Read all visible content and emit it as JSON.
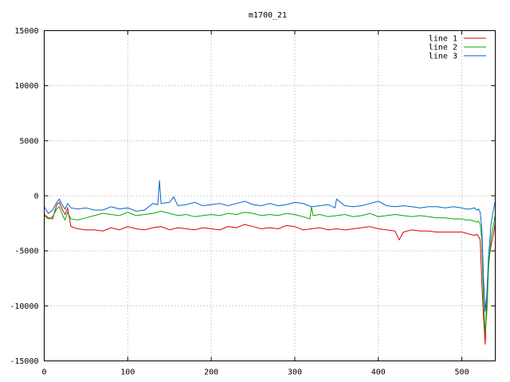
{
  "chart_data": {
    "type": "line",
    "title": "m1700_21",
    "xlabel": "",
    "ylabel": "",
    "xlim": [
      0,
      540
    ],
    "ylim": [
      -15000,
      15000
    ],
    "xticks": [
      0,
      100,
      200,
      300,
      400,
      500
    ],
    "yticks": [
      -15000,
      -10000,
      -5000,
      0,
      5000,
      10000,
      15000
    ],
    "grid": true,
    "legend_position": "top-right",
    "series": [
      {
        "name": "line 1",
        "color": "#dd0000",
        "x": [
          0,
          5,
          10,
          15,
          18,
          22,
          25,
          28,
          32,
          40,
          50,
          60,
          70,
          80,
          90,
          100,
          110,
          120,
          130,
          140,
          150,
          160,
          170,
          180,
          190,
          200,
          210,
          220,
          230,
          240,
          250,
          260,
          270,
          280,
          290,
          300,
          310,
          320,
          330,
          340,
          350,
          360,
          370,
          380,
          390,
          400,
          410,
          420,
          425,
          430,
          440,
          450,
          460,
          470,
          480,
          490,
          500,
          505,
          510,
          515,
          518,
          520,
          522,
          524,
          526,
          528,
          530,
          532,
          535,
          538,
          540
        ],
        "y": [
          -1700,
          -2000,
          -2100,
          -800,
          -600,
          -1300,
          -1700,
          -1100,
          -2800,
          -3000,
          -3100,
          -3100,
          -3200,
          -2900,
          -3100,
          -2800,
          -3000,
          -3100,
          -2900,
          -2800,
          -3100,
          -2900,
          -3000,
          -3100,
          -2900,
          -3000,
          -3100,
          -2800,
          -2900,
          -2600,
          -2800,
          -3000,
          -2900,
          -3000,
          -2700,
          -2800,
          -3100,
          -3000,
          -2900,
          -3100,
          -3000,
          -3100,
          -3000,
          -2900,
          -2800,
          -3000,
          -3100,
          -3200,
          -4000,
          -3300,
          -3100,
          -3200,
          -3200,
          -3300,
          -3300,
          -3300,
          -3300,
          -3400,
          -3500,
          -3600,
          -3500,
          -3700,
          -4000,
          -8000,
          -11000,
          -13500,
          -9000,
          -6000,
          -4500,
          -3400,
          -2500
        ]
      },
      {
        "name": "line 2",
        "color": "#00aa00",
        "x": [
          0,
          5,
          10,
          15,
          18,
          22,
          25,
          28,
          32,
          40,
          50,
          60,
          70,
          80,
          90,
          100,
          110,
          120,
          130,
          140,
          150,
          160,
          170,
          180,
          190,
          200,
          210,
          220,
          230,
          240,
          250,
          260,
          270,
          280,
          290,
          300,
          310,
          318,
          320,
          322,
          330,
          340,
          350,
          360,
          370,
          380,
          390,
          400,
          410,
          420,
          430,
          440,
          450,
          460,
          470,
          480,
          490,
          500,
          505,
          510,
          515,
          518,
          520,
          522,
          524,
          526,
          528,
          530,
          532,
          535,
          538,
          540
        ],
        "y": [
          -1800,
          -2100,
          -1900,
          -1200,
          -1000,
          -1800,
          -2200,
          -1500,
          -2100,
          -2200,
          -2000,
          -1800,
          -1600,
          -1700,
          -1800,
          -1500,
          -1800,
          -1700,
          -1600,
          -1400,
          -1600,
          -1800,
          -1700,
          -1900,
          -1800,
          -1700,
          -1800,
          -1600,
          -1700,
          -1500,
          -1600,
          -1800,
          -1700,
          -1800,
          -1600,
          -1700,
          -1900,
          -2100,
          -1000,
          -1800,
          -1700,
          -1900,
          -1800,
          -1700,
          -1900,
          -1800,
          -1600,
          -1900,
          -1800,
          -1700,
          -1800,
          -1900,
          -1800,
          -1900,
          -2000,
          -2000,
          -2100,
          -2100,
          -2200,
          -2200,
          -2300,
          -2400,
          -2300,
          -2600,
          -4000,
          -9500,
          -12500,
          -10500,
          -6500,
          -3800,
          -2600,
          -1700
        ]
      },
      {
        "name": "line 3",
        "color": "#0066cc",
        "x": [
          0,
          5,
          10,
          15,
          18,
          22,
          25,
          28,
          32,
          40,
          50,
          60,
          70,
          80,
          90,
          100,
          110,
          120,
          130,
          136,
          138,
          140,
          150,
          155,
          160,
          170,
          180,
          190,
          200,
          210,
          220,
          230,
          240,
          250,
          260,
          270,
          280,
          290,
          300,
          310,
          320,
          330,
          340,
          348,
          350,
          360,
          370,
          380,
          390,
          400,
          410,
          420,
          430,
          440,
          450,
          460,
          470,
          480,
          490,
          500,
          505,
          510,
          515,
          518,
          520,
          522,
          524,
          526,
          528,
          530,
          532,
          535,
          538,
          540
        ],
        "y": [
          -1000,
          -1600,
          -1300,
          -600,
          -300,
          -900,
          -1200,
          -700,
          -1100,
          -1200,
          -1100,
          -1300,
          -1300,
          -1000,
          -1200,
          -1100,
          -1400,
          -1300,
          -700,
          -800,
          1400,
          -700,
          -600,
          -100,
          -900,
          -800,
          -600,
          -900,
          -800,
          -700,
          -900,
          -700,
          -500,
          -800,
          -900,
          -700,
          -900,
          -800,
          -600,
          -700,
          -1000,
          -900,
          -800,
          -1100,
          -300,
          -900,
          -1000,
          -900,
          -700,
          -500,
          -900,
          -1000,
          -900,
          -1000,
          -1100,
          -1000,
          -1000,
          -1100,
          -1000,
          -1100,
          -1200,
          -1200,
          -1100,
          -1300,
          -1200,
          -1500,
          -3000,
          -7500,
          -10500,
          -9000,
          -5500,
          -2500,
          -1200,
          -500
        ]
      }
    ]
  }
}
